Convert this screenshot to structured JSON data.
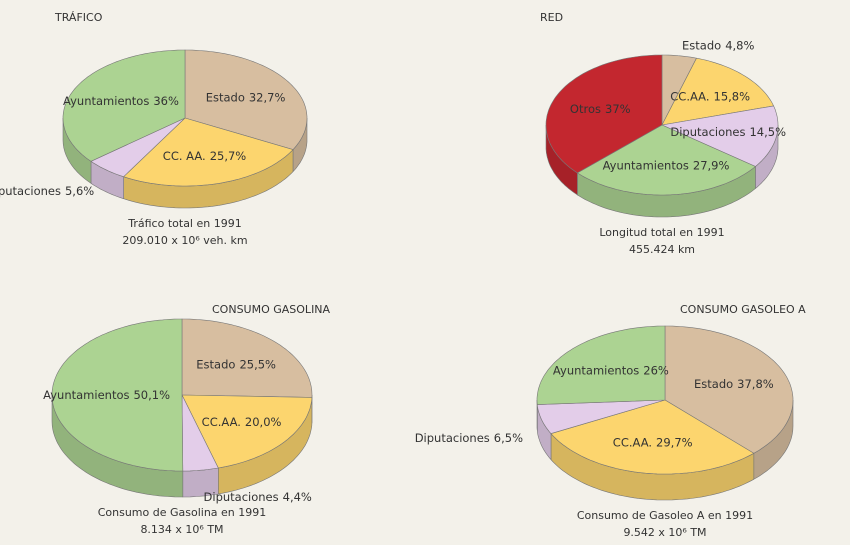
{
  "chart_data": [
    {
      "type": "pie",
      "title": "TRÁFICO",
      "categories": [
        "Estado",
        "CC. AA.",
        "Diputaciones",
        "Ayuntamientos"
      ],
      "values": [
        32.7,
        25.7,
        5.6,
        36
      ],
      "value_labels": [
        "32,7%",
        "25,7%",
        "5,6%",
        "36%"
      ],
      "colors": [
        "#d7bea0",
        "#fcd56e",
        "#e3cde9",
        "#acd392"
      ],
      "caption": [
        "Tráfico total en 1991",
        "209.010 x 10⁶ veh. km"
      ]
    },
    {
      "type": "pie",
      "title": "RED",
      "categories": [
        "Estado",
        "CC.AA.",
        "Diputaciones",
        "Ayuntamientos",
        "Otros"
      ],
      "values": [
        4.8,
        15.8,
        14.5,
        27.9,
        37
      ],
      "value_labels": [
        "4,8%",
        "15,8%",
        "14,5%",
        "27,9%",
        "37%"
      ],
      "colors": [
        "#d7bea0",
        "#fcd56e",
        "#e3cde9",
        "#acd392",
        "#c3272f"
      ],
      "caption": [
        "Longitud total en 1991",
        "455.424 km"
      ]
    },
    {
      "type": "pie",
      "title": "CONSUMO GASOLINA",
      "categories": [
        "Estado",
        "CC.AA.",
        "Diputaciones",
        "Ayuntamientos"
      ],
      "values": [
        25.5,
        20.0,
        4.4,
        50.1
      ],
      "value_labels": [
        "25,5%",
        "20,0%",
        "4,4%",
        "50,1%"
      ],
      "colors": [
        "#d7bea0",
        "#fcd56e",
        "#e3cde9",
        "#acd392"
      ],
      "caption": [
        "Consumo de Gasolina en 1991",
        "8.134 x 10⁶ TM"
      ]
    },
    {
      "type": "pie",
      "title": "CONSUMO GASOLEO A",
      "categories": [
        "Estado",
        "CC.AA.",
        "Diputaciones",
        "Ayuntamientos"
      ],
      "values": [
        37.8,
        29.7,
        6.5,
        26
      ],
      "value_labels": [
        "37,8%",
        "29,7%",
        "6,5%",
        "26%"
      ],
      "colors": [
        "#d7bea0",
        "#fcd56e",
        "#e3cde9",
        "#acd392"
      ],
      "caption": [
        "Consumo de Gasoleo A en 1991",
        "9.542 x 10⁶ TM"
      ]
    }
  ]
}
